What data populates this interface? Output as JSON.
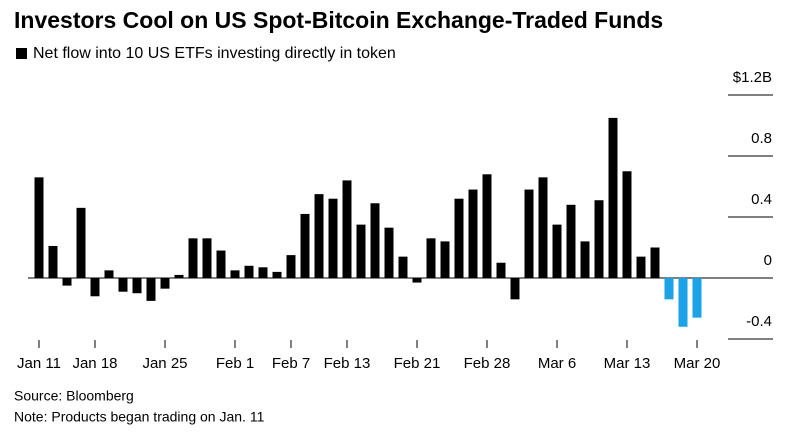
{
  "chart_data": {
    "type": "bar",
    "title": "Investors Cool on US Spot-Bitcoin Exchange-Traded Funds",
    "subtitle": "Net flow into 10 US ETFs investing directly in token",
    "source": "Source: Bloomberg",
    "note": "Note: Products began trading on Jan. 11",
    "categories": [
      "Jan 11",
      null,
      null,
      null,
      "Jan 18",
      null,
      null,
      null,
      null,
      "Jan 25",
      null,
      null,
      null,
      null,
      "Feb 1",
      null,
      null,
      null,
      "Feb 7",
      null,
      null,
      null,
      "Feb 13",
      null,
      null,
      null,
      null,
      "Feb 21",
      null,
      null,
      null,
      null,
      "Feb 28",
      null,
      null,
      null,
      null,
      "Mar 6",
      null,
      null,
      null,
      null,
      "Mar 13",
      null,
      null,
      null,
      null,
      "Mar 20"
    ],
    "values": [
      0.66,
      0.21,
      -0.05,
      0.46,
      -0.12,
      0.05,
      -0.09,
      -0.1,
      -0.15,
      -0.07,
      0.02,
      0.26,
      0.26,
      0.18,
      0.05,
      0.08,
      0.07,
      0.04,
      0.15,
      0.42,
      0.55,
      0.52,
      0.64,
      0.35,
      0.49,
      0.33,
      0.14,
      -0.03,
      0.26,
      0.24,
      0.52,
      0.58,
      0.68,
      0.1,
      -0.14,
      0.58,
      0.66,
      0.35,
      0.48,
      0.24,
      0.51,
      1.05,
      0.7,
      0.14,
      0.2,
      -0.14,
      -0.32,
      -0.26
    ],
    "colors": [
      "#000000",
      "#000000",
      "#000000",
      "#000000",
      "#000000",
      "#000000",
      "#000000",
      "#000000",
      "#000000",
      "#000000",
      "#000000",
      "#000000",
      "#000000",
      "#000000",
      "#000000",
      "#000000",
      "#000000",
      "#000000",
      "#000000",
      "#000000",
      "#000000",
      "#000000",
      "#000000",
      "#000000",
      "#000000",
      "#000000",
      "#000000",
      "#000000",
      "#000000",
      "#000000",
      "#000000",
      "#000000",
      "#000000",
      "#000000",
      "#000000",
      "#000000",
      "#000000",
      "#000000",
      "#000000",
      "#000000",
      "#000000",
      "#000000",
      "#000000",
      "#000000",
      "#000000",
      "#1aa3e8",
      "#1aa3e8",
      "#1aa3e8"
    ],
    "ylim": [
      -0.45,
      1.25
    ],
    "yticks": [
      {
        "value": 1.2,
        "label": "$1.2B"
      },
      0.8,
      0.4,
      0,
      -0.4
    ],
    "grid": true
  }
}
